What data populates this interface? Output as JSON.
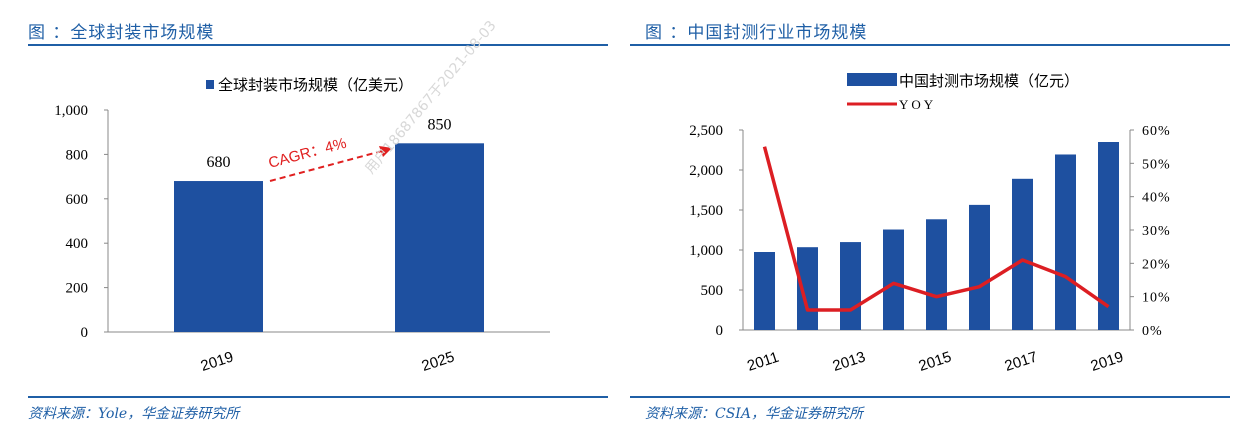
{
  "left": {
    "title": "图  ：全球封装市场规模",
    "source": "资料来源：Yole，华金证券研究所",
    "chart_data": {
      "type": "bar",
      "title": "",
      "legend": "全球封装市场规模（亿美元）",
      "categories": [
        "2019",
        "2025"
      ],
      "values": [
        680,
        850
      ],
      "ylim": [
        0,
        1000
      ],
      "yticks": [
        "0",
        "200",
        "400",
        "600",
        "800",
        "1,000"
      ],
      "annotation": "CAGR：4%",
      "bar_color": "#1e50a0",
      "annotation_color": "#e02020"
    }
  },
  "right": {
    "title": "图  ：中国封测行业市场规模",
    "source": "资料来源：CSIA，华金证券研究所",
    "chart_data": {
      "type": "bar",
      "title": "",
      "legend": [
        "中国封测市场规模（亿元）",
        "YOY"
      ],
      "x": [
        2011,
        2012,
        2013,
        2014,
        2015,
        2016,
        2017,
        2018,
        2019
      ],
      "xticks": [
        "2011",
        "2013",
        "2015",
        "2017",
        "2019"
      ],
      "series": [
        {
          "name": "中国封测市场规模（亿元）",
          "type": "bar",
          "axis": "left",
          "values": [
            975,
            1035,
            1099,
            1256,
            1384,
            1564,
            1890,
            2194,
            2350
          ]
        },
        {
          "name": "YOY",
          "type": "line",
          "axis": "right",
          "values": [
            55,
            6,
            6,
            14,
            10,
            13,
            21,
            16,
            7
          ]
        }
      ],
      "ylim_left": [
        0,
        2500
      ],
      "yticks_left": [
        "0",
        "500",
        "1,000",
        "1,500",
        "2,000",
        "2,500"
      ],
      "ylim_right": [
        0,
        60
      ],
      "yticks_right": [
        "0%",
        "10%",
        "20%",
        "30%",
        "40%",
        "50%",
        "60%"
      ],
      "bar_color": "#1e50a0",
      "line_color": "#dc1e23"
    }
  },
  "watermark": "用户18687867于2021-08-03"
}
